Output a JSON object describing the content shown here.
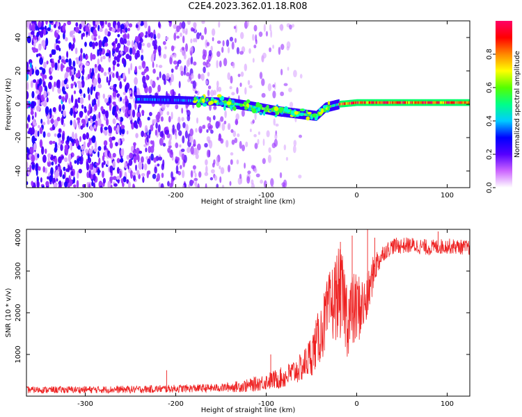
{
  "title": "C2E4.2023.362.01.18.R08",
  "chart_data": [
    {
      "type": "heatmap",
      "xlabel": "Height of straight line (km)",
      "ylabel": "Frequency (Hz)",
      "xlim": [
        -365,
        125
      ],
      "ylim": [
        -50,
        50
      ],
      "x_ticks": [
        -300,
        -200,
        -100,
        0,
        100
      ],
      "y_ticks": [
        -40,
        -20,
        0,
        20,
        40
      ],
      "colorbar": {
        "label": "Normalized spectral amplitude",
        "range": [
          0,
          1
        ],
        "ticks": [
          0.0,
          0.2,
          0.4,
          0.6,
          0.8
        ],
        "tick_labels": [
          "0.0",
          "0.2",
          "0.4",
          "0.6",
          "0.8"
        ],
        "colors": [
          "#ffffff",
          "#cc66ff",
          "#5500ff",
          "#0000ff",
          "#00ccff",
          "#00ff88",
          "#55ff00",
          "#ffff00",
          "#ff8800",
          "#ff0000",
          "#ff0066"
        ]
      },
      "features": {
        "noise_region_x": [
          -365,
          -60
        ],
        "noise_density_profile": [
          [
            -365,
            0.95
          ],
          [
            -250,
            0.85
          ],
          [
            -200,
            0.55
          ],
          [
            -150,
            0.35
          ],
          [
            -100,
            0.18
          ],
          [
            -60,
            0.05
          ]
        ],
        "signal_trace": [
          [
            -245,
            3
          ],
          [
            -200,
            2.5
          ],
          [
            -150,
            1.5
          ],
          [
            -120,
            -1
          ],
          [
            -90,
            -4
          ],
          [
            -60,
            -6
          ],
          [
            -45,
            -7
          ],
          [
            -35,
            -2
          ],
          [
            -20,
            0
          ],
          [
            0,
            1
          ],
          [
            50,
            1
          ],
          [
            100,
            1
          ],
          [
            125,
            1
          ]
        ],
        "signal_peak_amplitude_x": [
          -20,
          125
        ]
      }
    },
    {
      "type": "line",
      "xlabel": "Height of straight line (km)",
      "ylabel": "SNR (10 * v/v)",
      "xlim": [
        -365,
        125
      ],
      "ylim": [
        0,
        4000
      ],
      "x_ticks": [
        -300,
        -200,
        -100,
        0,
        100
      ],
      "y_ticks": [
        1000,
        2000,
        3000,
        4000
      ],
      "series": [
        {
          "color": "#ee2222",
          "envelope": [
            [
              -365,
              150
            ],
            [
              -250,
              160
            ],
            [
              -200,
              180
            ],
            [
              -150,
              200
            ],
            [
              -120,
              250
            ],
            [
              -100,
              350
            ],
            [
              -80,
              450
            ],
            [
              -60,
              700
            ],
            [
              -50,
              1000
            ],
            [
              -40,
              1500
            ],
            [
              -30,
              2100
            ],
            [
              -20,
              2500
            ],
            [
              -15,
              2300
            ],
            [
              -10,
              1900
            ],
            [
              -5,
              2000
            ],
            [
              0,
              2100
            ],
            [
              10,
              2200
            ],
            [
              20,
              3100
            ],
            [
              30,
              3450
            ],
            [
              40,
              3600
            ],
            [
              60,
              3620
            ],
            [
              80,
              3560
            ],
            [
              100,
              3600
            ],
            [
              125,
              3560
            ]
          ],
          "noise_amplitude": [
            [
              -365,
              80
            ],
            [
              -150,
              100
            ],
            [
              -100,
              200
            ],
            [
              -60,
              350
            ],
            [
              -40,
              700
            ],
            [
              -20,
              1100
            ],
            [
              0,
              900
            ],
            [
              15,
              500
            ],
            [
              30,
              200
            ],
            [
              125,
              180
            ]
          ],
          "spikes": [
            [
              -210,
              620
            ],
            [
              -95,
              1000
            ],
            [
              -18,
              3700
            ],
            [
              -5,
              3850
            ],
            [
              12,
              4000
            ],
            [
              20,
              3800
            ],
            [
              90,
              3950
            ]
          ]
        }
      ]
    }
  ]
}
